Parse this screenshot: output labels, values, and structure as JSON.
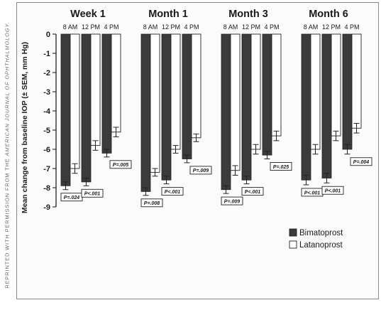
{
  "side_credit": {
    "prefix": "REPRINTED WITH PERMISSION FROM THE ",
    "journal": "AMERICAN JOURNAL OF OPHTHALMOLOGY."
  },
  "colors": {
    "bimatoprost": "#3b3b3b",
    "latanoprost": "#ffffff",
    "outline": "#222222",
    "text": "#1a1a1a"
  },
  "chart_data": {
    "type": "bar",
    "ylabel": "Mean change from baseline IOP (± SEM, mm Hg)",
    "ylim": [
      -9,
      0
    ],
    "yticks": [
      0,
      -1,
      -2,
      -3,
      -4,
      -5,
      -6,
      -7,
      -8,
      -9
    ],
    "grid": false,
    "legend_position": "bottom-right",
    "series": [
      {
        "name": "Bimatoprost",
        "color": "#3b3b3b"
      },
      {
        "name": "Latanoprost",
        "color": "#ffffff"
      }
    ],
    "groups": [
      {
        "title": "Week 1",
        "timepoints": [
          {
            "time": "8 AM",
            "bimatoprost": -7.9,
            "bimatoprost_sem": 0.2,
            "latanoprost": -7.0,
            "latanoprost_sem": 0.25,
            "p": "P=.024"
          },
          {
            "time": "12 PM",
            "bimatoprost": -7.7,
            "bimatoprost_sem": 0.2,
            "latanoprost": -5.8,
            "latanoprost_sem": 0.25,
            "p": "P<.001"
          },
          {
            "time": "4 PM",
            "bimatoprost": -6.2,
            "bimatoprost_sem": 0.2,
            "latanoprost": -5.1,
            "latanoprost_sem": 0.25,
            "p": "P=.005"
          }
        ]
      },
      {
        "title": "Month 1",
        "timepoints": [
          {
            "time": "8 AM",
            "bimatoprost": -8.2,
            "bimatoprost_sem": 0.2,
            "latanoprost": -7.2,
            "latanoprost_sem": 0.2,
            "p": "P=.008"
          },
          {
            "time": "12 PM",
            "bimatoprost": -7.6,
            "bimatoprost_sem": 0.2,
            "latanoprost": -6.0,
            "latanoprost_sem": 0.2,
            "p": "P<.001"
          },
          {
            "time": "4 PM",
            "bimatoprost": -6.5,
            "bimatoprost_sem": 0.2,
            "latanoprost": -5.4,
            "latanoprost_sem": 0.2,
            "p": "P=.009"
          }
        ]
      },
      {
        "title": "Month 3",
        "timepoints": [
          {
            "time": "8 AM",
            "bimatoprost": -8.1,
            "bimatoprost_sem": 0.2,
            "latanoprost": -7.1,
            "latanoprost_sem": 0.25,
            "p": "P=.009"
          },
          {
            "time": "12 PM",
            "bimatoprost": -7.6,
            "bimatoprost_sem": 0.2,
            "latanoprost": -6.0,
            "latanoprost_sem": 0.25,
            "p": "P<.001"
          },
          {
            "time": "4 PM",
            "bimatoprost": -6.3,
            "bimatoprost_sem": 0.2,
            "latanoprost": -5.3,
            "latanoprost_sem": 0.25,
            "p": "P=.025"
          }
        ]
      },
      {
        "title": "Month 6",
        "timepoints": [
          {
            "time": "8 AM",
            "bimatoprost": -7.6,
            "bimatoprost_sem": 0.25,
            "latanoprost": -6.0,
            "latanoprost_sem": 0.25,
            "p": "P<.001"
          },
          {
            "time": "12 PM",
            "bimatoprost": -7.5,
            "bimatoprost_sem": 0.25,
            "latanoprost": -5.3,
            "latanoprost_sem": 0.25,
            "p": "P<.001"
          },
          {
            "time": "4 PM",
            "bimatoprost": -6.0,
            "bimatoprost_sem": 0.25,
            "latanoprost": -4.9,
            "latanoprost_sem": 0.25,
            "p": "P=.004"
          }
        ]
      }
    ]
  }
}
